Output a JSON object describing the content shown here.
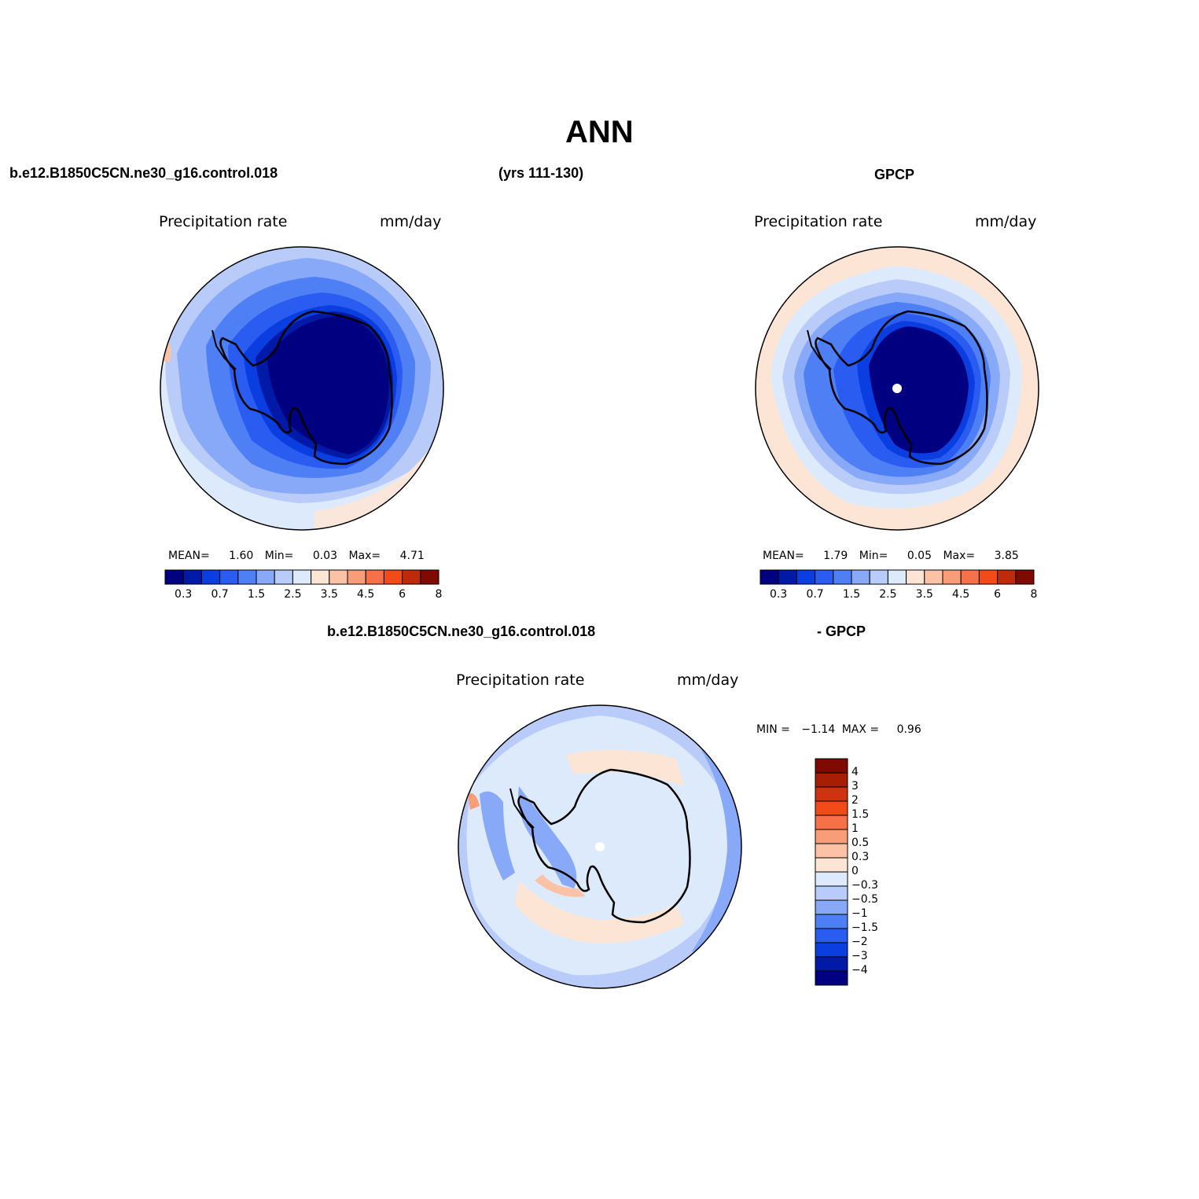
{
  "page": {
    "title": "ANN",
    "case_label_left": "b.e12.B1850C5CN.ne30_g16.control.018",
    "years_label": "(yrs 111-130)",
    "obs_label": "GPCP",
    "diff_case_label": "b.e12.B1850C5CN.ne30_g16.control.018",
    "diff_obs_label": "- GPCP"
  },
  "panels": {
    "model": {
      "variable": "Precipitation rate",
      "units": "mm/day",
      "mean_label": "MEAN=",
      "mean": "1.60",
      "min_label": "Min=",
      "min": "0.03",
      "max_label": "Max=",
      "max": "4.71"
    },
    "obs": {
      "variable": "Precipitation rate",
      "units": "mm/day",
      "mean_label": "MEAN=",
      "mean": "1.79",
      "min_label": "Min=",
      "min": "0.05",
      "max_label": "Max=",
      "max": "3.85"
    },
    "diff": {
      "variable": "Precipitation rate",
      "units": "mm/day",
      "min_label": "MIN =",
      "min": "−1.14",
      "max_label": "MAX =",
      "max": "0.96"
    }
  },
  "colorbar_horizontal": {
    "tick_labels": [
      "0.3",
      "0.7",
      "1.5",
      "2.5",
      "3.5",
      "4.5",
      "6",
      "8"
    ],
    "colors": [
      "#000080",
      "#001aa8",
      "#0a3ee0",
      "#2a5cf2",
      "#4f7ff5",
      "#88a9f7",
      "#b9ccf9",
      "#ddeafc",
      "#fde5d6",
      "#fbc2a6",
      "#f99c78",
      "#f77148",
      "#f34a1a",
      "#bf2b0a",
      "#7f0a00"
    ]
  },
  "colorbar_vertical": {
    "tick_labels": [
      "4",
      "3",
      "2",
      "1.5",
      "1",
      "0.5",
      "0.3",
      "0",
      "−0.3",
      "−0.5",
      "−1",
      "−1.5",
      "−2",
      "−3",
      "−4"
    ],
    "colors": [
      "#7f0a00",
      "#a81e05",
      "#d0320f",
      "#f34a1a",
      "#f77148",
      "#f99c78",
      "#fbc2a6",
      "#fde5d6",
      "#ddeafc",
      "#b9ccf9",
      "#88a9f7",
      "#4f7ff5",
      "#2a5cf2",
      "#0a3ee0",
      "#001aa8",
      "#000080"
    ]
  },
  "chart_data": [
    {
      "type": "heatmap",
      "projection": "south-polar-stereographic",
      "variable": "Precipitation rate",
      "units": "mm/day",
      "mean": 1.6,
      "min": 0.03,
      "max": 4.71,
      "levels": [
        0.3,
        0.7,
        1.5,
        2.5,
        3.5,
        4.5,
        6,
        8
      ]
    },
    {
      "type": "heatmap",
      "projection": "south-polar-stereographic",
      "variable": "Precipitation rate",
      "units": "mm/day",
      "mean": 1.79,
      "min": 0.05,
      "max": 3.85,
      "levels": [
        0.3,
        0.7,
        1.5,
        2.5,
        3.5,
        4.5,
        6,
        8
      ]
    },
    {
      "type": "heatmap",
      "projection": "south-polar-stereographic",
      "variable": "Precipitation rate",
      "units": "mm/day",
      "min": -1.14,
      "max": 0.96,
      "levels": [
        -4,
        -3,
        -2,
        -1.5,
        -1,
        -0.5,
        -0.3,
        0,
        0.3,
        0.5,
        1,
        1.5,
        2,
        3,
        4
      ]
    }
  ]
}
